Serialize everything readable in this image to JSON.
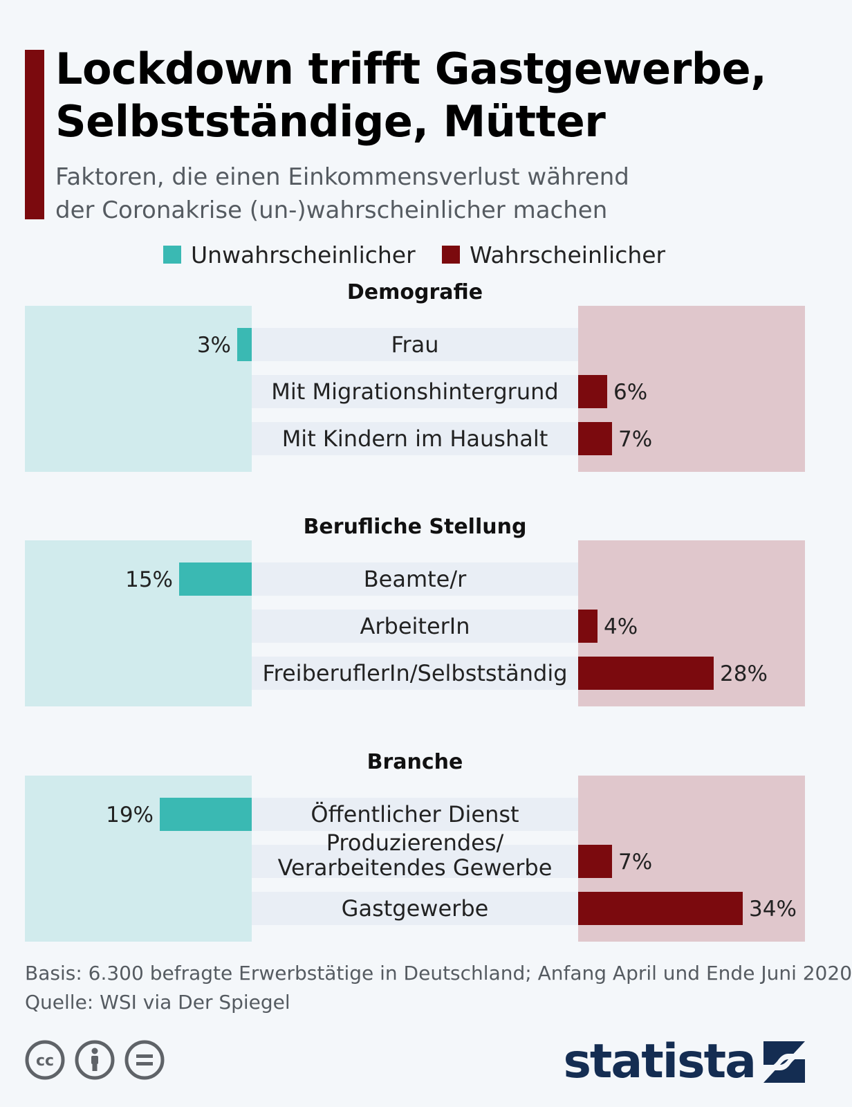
{
  "header": {
    "title_line1": "Lockdown trifft Gastgewerbe,",
    "title_line2": "Selbstständige, Mütter",
    "subtitle_line1": "Faktoren, die einen Einkommensverlust während",
    "subtitle_line2": "der Coronakrise (un-)wahrscheinlicher machen"
  },
  "legend": {
    "left_label": "Unwahrscheinlicher",
    "right_label": "Wahrscheinlicher",
    "left_color": "#3ab9b3",
    "right_color": "#7b0a0e"
  },
  "colors": {
    "left_panel": "#d1ebed",
    "right_panel": "#e0c7cc",
    "label_row": "#e9eef5"
  },
  "chart_data": {
    "type": "bar",
    "title": "Lockdown trifft Gastgewerbe, Selbstständige, Mütter",
    "unit": "%",
    "xlim": [
      0,
      40
    ],
    "series_names": [
      "Unwahrscheinlicher",
      "Wahrscheinlicher"
    ],
    "groups": [
      {
        "name": "Demografie",
        "rows": [
          {
            "label": [
              "Frau"
            ],
            "side": "left",
            "value": 3,
            "value_label": "3%"
          },
          {
            "label": [
              "Mit Migrationshintergrund"
            ],
            "side": "right",
            "value": 6,
            "value_label": "6%"
          },
          {
            "label": [
              "Mit Kindern im Haushalt"
            ],
            "side": "right",
            "value": 7,
            "value_label": "7%"
          }
        ]
      },
      {
        "name": "Berufliche Stellung",
        "rows": [
          {
            "label": [
              "Beamte/r"
            ],
            "side": "left",
            "value": 15,
            "value_label": "15%"
          },
          {
            "label": [
              "ArbeiterIn"
            ],
            "side": "right",
            "value": 4,
            "value_label": "4%"
          },
          {
            "label": [
              "FreiberuflerIn/Selbstständig"
            ],
            "side": "right",
            "value": 28,
            "value_label": "28%"
          }
        ]
      },
      {
        "name": "Branche",
        "rows": [
          {
            "label": [
              "Öffentlicher Dienst"
            ],
            "side": "left",
            "value": 19,
            "value_label": "19%"
          },
          {
            "label": [
              "Produzierendes/",
              "Verarbeitendes Gewerbe"
            ],
            "side": "right",
            "value": 7,
            "value_label": "7%"
          },
          {
            "label": [
              "Gastgewerbe"
            ],
            "side": "right",
            "value": 34,
            "value_label": "34%"
          }
        ]
      }
    ]
  },
  "footer": {
    "basis": "Basis: 6.300 befragte Erwerbstätige in Deutschland; Anfang April und Ende Juni 2020",
    "source": "Quelle: WSI via Der Spiegel"
  },
  "icons": [
    "cc-icon",
    "attribution-icon",
    "no-derivatives-icon",
    "statista-logo-icon"
  ],
  "brand": {
    "name": "statista"
  }
}
